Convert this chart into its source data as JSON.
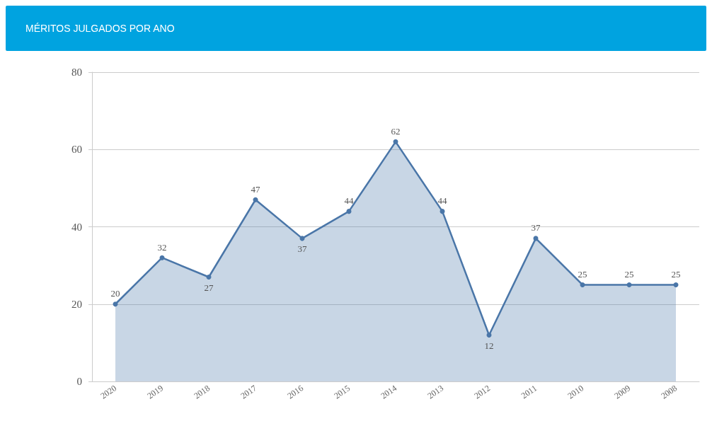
{
  "chart_data": {
    "type": "area",
    "title": "MÉRITOS JULGADOS POR ANO",
    "categories": [
      "2020",
      "2019",
      "2018",
      "2017",
      "2016",
      "2015",
      "2014",
      "2013",
      "2012",
      "2011",
      "2010",
      "2009",
      "2008"
    ],
    "series": [
      {
        "color": "#4a76a8",
        "values": [
          20,
          32,
          27,
          47,
          37,
          44,
          62,
          44,
          12,
          37,
          25,
          25,
          25
        ]
      }
    ],
    "ylim": [
      0,
      80
    ],
    "yticks": [
      0,
      20,
      40,
      60,
      80
    ],
    "grid": "y",
    "marker": "circle",
    "data_labels": true
  }
}
